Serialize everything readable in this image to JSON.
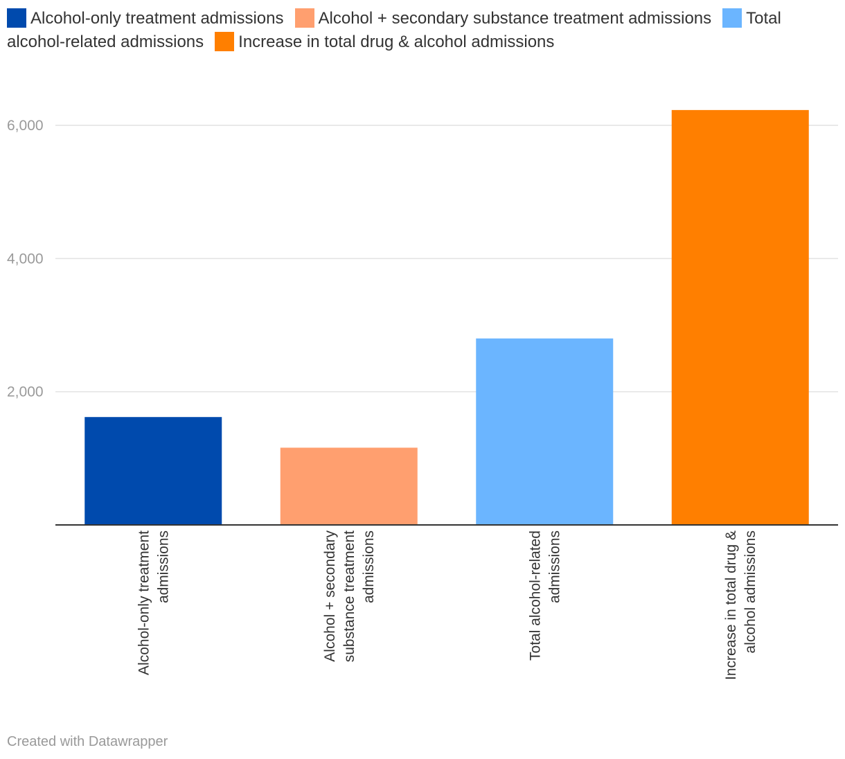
{
  "chart_data": {
    "type": "bar",
    "categories": [
      "Alcohol-only treatment admissions",
      "Alcohol + secondary substance treatment admissions",
      "Total alcohol-related admissions",
      "Increase in total drug & alcohol admissions"
    ],
    "category_label_lines": [
      [
        "Alcohol-only treatment",
        "admissions"
      ],
      [
        "Alcohol + secondary",
        "substance treatment",
        "admissions"
      ],
      [
        "Total alcohol-related",
        "admissions"
      ],
      [
        "Increase in total drug &",
        "alcohol admissions"
      ]
    ],
    "values": [
      1620,
      1160,
      2800,
      6230
    ],
    "colors": [
      "#004aad",
      "#ff9f6f",
      "#6bb5ff",
      "#ff7f00"
    ],
    "legend": [
      "Alcohol-only treatment admissions",
      "Alcohol + secondary substance treatment admissions",
      "Total alcohol-related admissions",
      "Increase in total drug & alcohol admissions"
    ],
    "yticks": [
      2000,
      4000,
      6000
    ],
    "ytick_labels": [
      "2,000",
      "4,000",
      "6,000"
    ],
    "ylim": [
      0,
      6500
    ],
    "grid": true
  },
  "credit": "Created with Datawrapper"
}
